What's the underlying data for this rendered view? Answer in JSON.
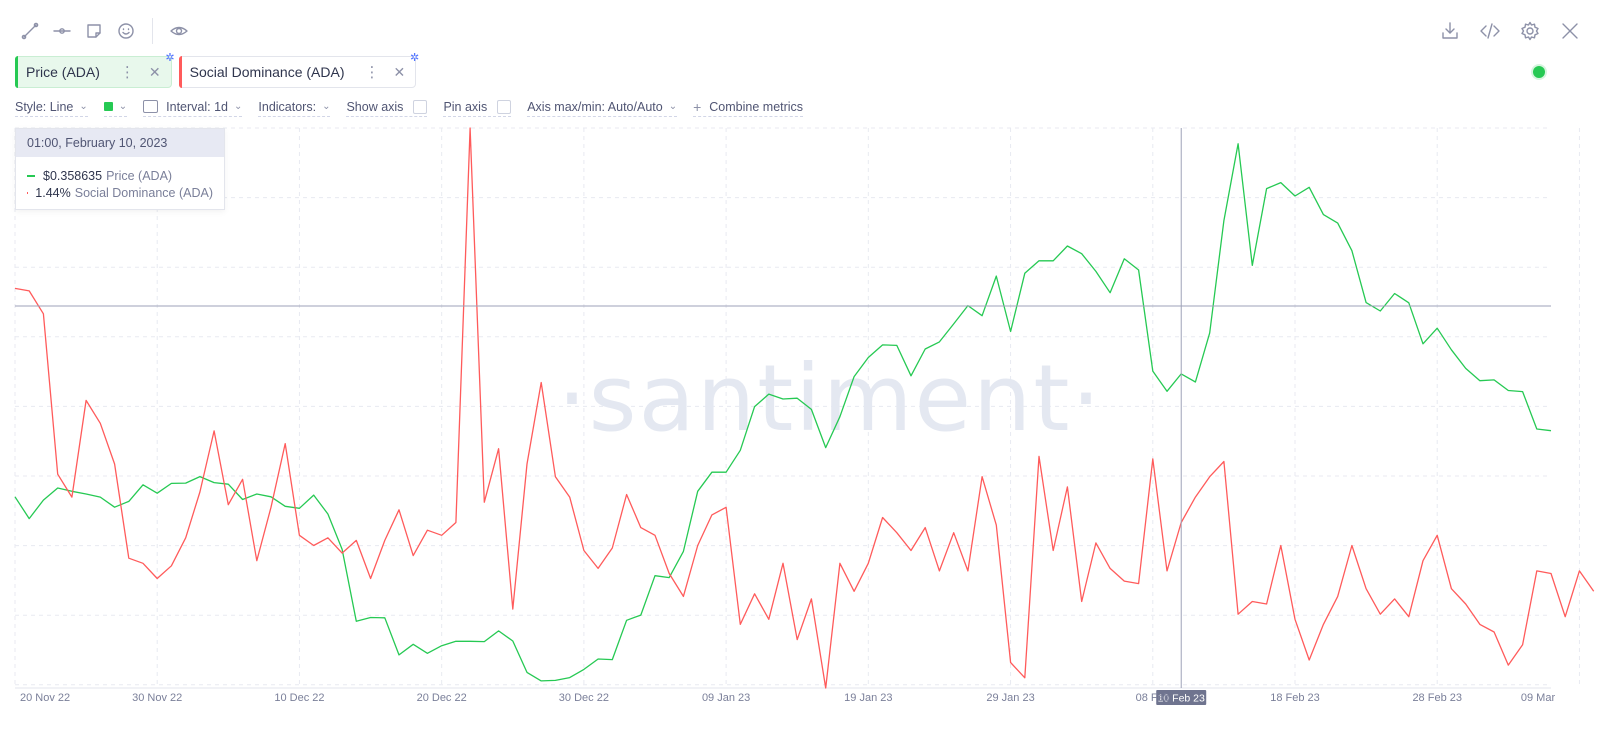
{
  "toolbar": {
    "left_icons": [
      "line-tool-icon",
      "horizontal-ray-icon",
      "sticky-note-icon",
      "emoji-icon",
      "eye-icon"
    ],
    "right_icons": [
      "download-icon",
      "embed-code-icon",
      "settings-gear-icon",
      "close-icon"
    ]
  },
  "metrics": [
    {
      "label": "Price (ADA)",
      "color": "#26c953"
    },
    {
      "label": "Social Dominance (ADA)",
      "color": "#ff5b5b"
    }
  ],
  "settings": {
    "style": "Style: Line",
    "interval": "Interval: 1d",
    "indicators": "Indicators:",
    "show_axis": "Show axis",
    "pin_axis": "Pin axis",
    "axis_maxmin": "Axis max/min: Auto/Auto",
    "combine": "Combine metrics"
  },
  "tooltip": {
    "date": "01:00, February 10, 2023",
    "rows": [
      {
        "value": "$0.358635",
        "name": "Price (ADA)",
        "color": "#26c953"
      },
      {
        "value": "1.44%",
        "name": "Social Dominance (ADA)",
        "color": "#ff5b5b"
      }
    ]
  },
  "watermark": "·santiment·",
  "chart_data": {
    "type": "line",
    "x_start": "2022-11-20",
    "x_ticks": [
      "20 Nov 22",
      "30 Nov 22",
      "10 Dec 22",
      "20 Dec 22",
      "30 Dec 22",
      "09 Jan 23",
      "19 Jan 23",
      "29 Jan 23",
      "08 Feb",
      "18 Feb 23",
      "28 Feb 23",
      "09 Mar"
    ],
    "crosshair_label": "10 Feb 23",
    "grid": true,
    "series": [
      {
        "name": "Price (ADA)",
        "color": "#26c953",
        "values": [
          0.32,
          0.312,
          0.3188,
          0.3232,
          0.322,
          0.321,
          0.3199,
          0.3162,
          0.3183,
          0.3244,
          0.3213,
          0.3249,
          0.325,
          0.3274,
          0.3252,
          0.3246,
          0.319,
          0.321,
          0.32,
          0.3165,
          0.3158,
          0.3206,
          0.3137,
          0.3008,
          0.2744,
          0.2758,
          0.2757,
          0.2621,
          0.266,
          0.2627,
          0.2655,
          0.2671,
          0.2671,
          0.267,
          0.2709,
          0.2672,
          0.2557,
          0.2526,
          0.2528,
          0.2538,
          0.2568,
          0.2606,
          0.2604,
          0.2748,
          0.2767,
          0.2911,
          0.2904,
          0.3,
          0.322,
          0.329,
          0.329,
          0.337,
          0.353,
          0.3576,
          0.3558,
          0.3561,
          0.352,
          0.338,
          0.3493,
          0.364,
          0.371,
          0.3756,
          0.3754,
          0.3643,
          0.3741,
          0.3767,
          0.3833,
          0.39,
          0.3863,
          0.4008,
          0.3805,
          0.4018,
          0.4064,
          0.4064,
          0.4118,
          0.409,
          0.4025,
          0.3947,
          0.4071,
          0.403,
          0.366,
          0.3586,
          0.365,
          0.362,
          0.38,
          0.4211,
          0.4492,
          0.4047,
          0.4328,
          0.435,
          0.4301,
          0.4333,
          0.4233,
          0.4202,
          0.4101,
          0.3911,
          0.388,
          0.3944,
          0.391,
          0.376,
          0.3817,
          0.3738,
          0.367,
          0.3625,
          0.3628,
          0.3589,
          0.3585,
          0.3448,
          0.3442
        ]
      },
      {
        "name": "Social Dominance (ADA)",
        "color": "#ff5b5b",
        "values": [
          2.18,
          2.17,
          2.08,
          1.45,
          1.36,
          1.74,
          1.65,
          1.49,
          1.12,
          1.1,
          1.04,
          1.09,
          1.2,
          1.38,
          1.62,
          1.33,
          1.43,
          1.11,
          1.32,
          1.57,
          1.21,
          1.17,
          1.2,
          1.14,
          1.19,
          1.04,
          1.19,
          1.31,
          1.13,
          1.23,
          1.21,
          1.26,
          2.81,
          1.34,
          1.55,
          0.92,
          1.49,
          1.81,
          1.44,
          1.36,
          1.15,
          1.08,
          1.16,
          1.37,
          1.24,
          1.21,
          1.06,
          0.97,
          1.17,
          1.29,
          1.32,
          0.86,
          0.98,
          0.88,
          1.1,
          0.8,
          0.96,
          0.61,
          1.1,
          0.99,
          1.1,
          1.28,
          1.22,
          1.15,
          1.24,
          1.07,
          1.22,
          1.07,
          1.44,
          1.25,
          0.71,
          0.65,
          1.52,
          1.15,
          1.4,
          0.95,
          1.18,
          1.08,
          1.03,
          1.02,
          1.51,
          1.07,
          1.26,
          1.36,
          1.44,
          1.5,
          0.9,
          0.95,
          0.94,
          1.17,
          0.88,
          0.72,
          0.86,
          0.97,
          1.17,
          1.0,
          0.9,
          0.96,
          0.89,
          1.11,
          1.21,
          1.0,
          0.94,
          0.86,
          0.83,
          0.7,
          0.78,
          1.07,
          1.06,
          0.89,
          1.07,
          0.99
        ]
      }
    ],
    "ylim_price": [
      0.25,
      0.455
    ],
    "ylim_social": [
      0.61,
      2.81
    ]
  }
}
